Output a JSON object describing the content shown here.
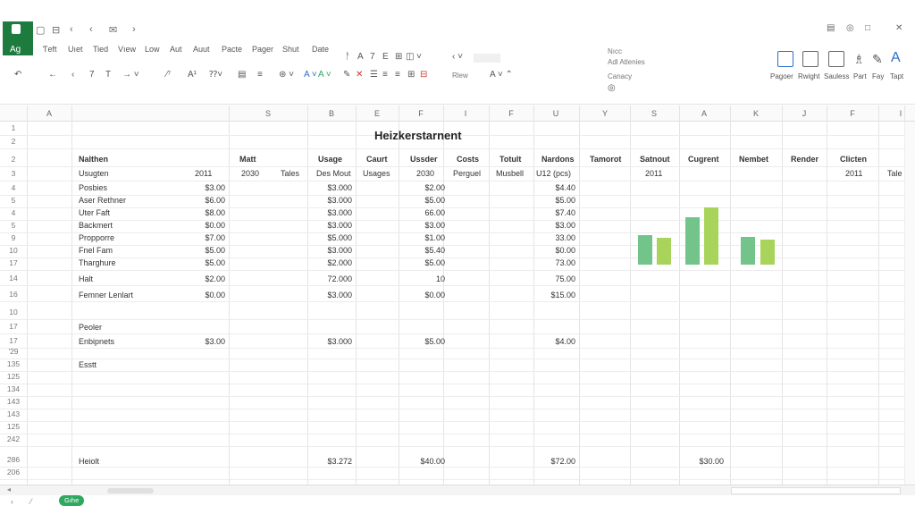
{
  "app": {
    "badge_label": "Ag"
  },
  "menu": [
    "Ƭeft",
    "Uıet",
    "Tied",
    "Vıew",
    "Low",
    "Aut",
    "Auut",
    "Pacte",
    "Pager",
    "Shut",
    "Date"
  ],
  "ribbon": {
    "tools_row1": [
      "ᚨ",
      "A",
      "7",
      "E",
      "⊞",
      "◫",
      "˅"
    ],
    "pane_title": "Nıcc",
    "pane_items": [
      "Adl Atlenies",
      "Canacy"
    ],
    "font_sample": "Rlew",
    "right_buttons": [
      "Pagoer",
      "Rwight",
      "Sauless",
      "Part",
      "Fay",
      "Tapt"
    ]
  },
  "columns": [
    "A",
    "",
    "S",
    "B",
    "E",
    "F",
    "I",
    "F",
    "U",
    "Y",
    "S",
    "A",
    "K",
    "J",
    "F",
    "I"
  ],
  "rows": [
    "1",
    "2",
    "2",
    "3",
    "4",
    "5",
    "4",
    "5",
    "9",
    "10",
    "17",
    "14",
    "16",
    "10",
    "17",
    "17",
    "'29",
    "135",
    "125",
    "134",
    "143",
    "143",
    "125",
    "242",
    "286",
    "206"
  ],
  "sheet": {
    "title": "Heizkerstarnent",
    "headers": {
      "name": "Nalthen",
      "matt": "Matt",
      "usage": "Usage",
      "caurt": "Caurt",
      "ussder": "Ussder",
      "costs": "Costs",
      "totult": "Totult",
      "nardons": "Nardons",
      "tamorot": "Tamorot",
      "satnout": "Satnout",
      "cugrent": "Cugrent",
      "nembet": "Nembet",
      "render": "Render",
      "clicten": "Clicten"
    },
    "subheaders": {
      "usugten": "Usugten",
      "y2011": "2011",
      "y2030": "2030",
      "tales": "Tales",
      "desmout": "Des Mout",
      "usages": "Usages",
      "y2080": "2030",
      "perguel": "Perguel",
      "musbell": "Musbell",
      "u12": "U12 (pcs)",
      "y2011b": "2011",
      "y2011c": "2011",
      "tale": "Tale"
    },
    "data_rows": [
      {
        "name": "Posbies",
        "a": "$3.00",
        "usage": "$3.000",
        "ussder": "$2.00",
        "nardons": "$4.40"
      },
      {
        "name": "Aser Rethner",
        "a": "$6.00",
        "usage": "$3.000",
        "ussder": "$5.00",
        "nardons": "$5.00"
      },
      {
        "name": "Uter Faft",
        "a": "$8.00",
        "usage": "$3.000",
        "ussder": "66.00",
        "nardons": "$7.40"
      },
      {
        "name": "Backmert",
        "a": "$0.00",
        "usage": "$3.000",
        "ussder": "$3.00",
        "nardons": "$3.00"
      },
      {
        "name": "Propporre",
        "a": "$7.00",
        "usage": "$5.000",
        "ussder": "$1.00",
        "nardons": "33.00"
      },
      {
        "name": "Fnel Fam",
        "a": "$5.00",
        "usage": "$3.000",
        "ussder": "$5.40",
        "nardons": "$0.00"
      },
      {
        "name": "Tharghure",
        "a": "$5.00",
        "usage": "$2.000",
        "ussder": "$5.00",
        "nardons": "73.00"
      }
    ],
    "halt": {
      "name": "Halt",
      "a": "$2.00",
      "usage": "72.000",
      "ussder": "10",
      "nardons": "75.00"
    },
    "femner": {
      "name": "Femner Lenlart",
      "a": "$0.00",
      "usage": "$3.000",
      "ussder": "$0.00",
      "nardons": "$15.00"
    },
    "peoler": {
      "name": "Peoler"
    },
    "enbipnets": {
      "name": "Enbipnets",
      "a": "$3.00",
      "usage": "$3.000",
      "ussder": "$5.00",
      "nardons": "$4.00"
    },
    "esstt": {
      "name": "Esstt"
    },
    "heiolt": {
      "name": "Heiolt",
      "usage": "$3.272",
      "ussder": "$40.00",
      "nardons": "$72.00",
      "cugrent": "$30.00"
    }
  },
  "chart_data": {
    "type": "bar",
    "categories": [
      "",
      "",
      "",
      "",
      "",
      ""
    ],
    "values": [
      37,
      33,
      59,
      71,
      34,
      31
    ],
    "colors": [
      "#72c48a",
      "#a8d45c",
      "#72c48a",
      "#a8d45c",
      "#72c48a",
      "#a8d45c"
    ],
    "ylim": [
      0,
      80
    ]
  },
  "tabs": {
    "sheet_tab": "Gıhe"
  }
}
